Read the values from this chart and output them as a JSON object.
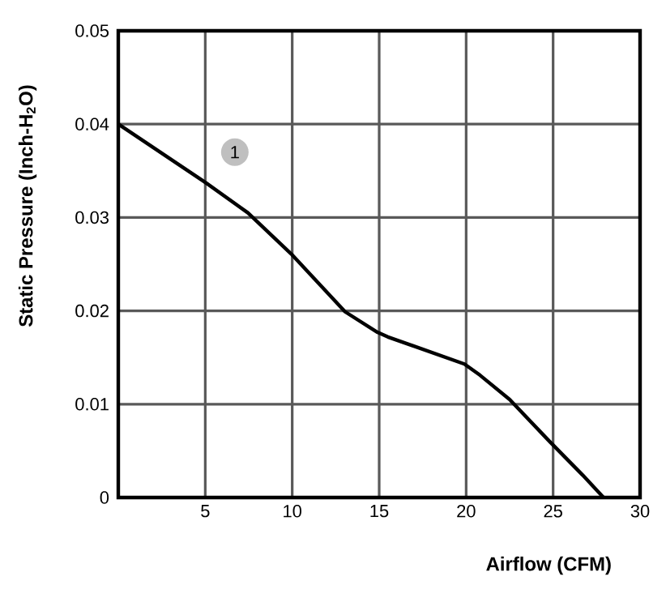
{
  "chart_data": {
    "type": "line",
    "xlabel": "Airflow (CFM)",
    "ylabel": "Static Pressure (Inch-H$_{2}$O)",
    "x": [
      0,
      4.97,
      7.45,
      9.94,
      13.04,
      14.9,
      15.5,
      19.9,
      20.8,
      22.5,
      24.8,
      26.7,
      27.9
    ],
    "values": [
      0.04,
      0.0338,
      0.0305,
      0.0261,
      0.0199,
      0.0177,
      0.0172,
      0.0143,
      0.0131,
      0.0105,
      0.006,
      0.0024,
      0
    ],
    "color": "#000000",
    "xlim": [
      0,
      30
    ],
    "xticks": [
      5,
      10,
      15,
      20,
      25,
      30
    ],
    "ylim": [
      0,
      0.05
    ],
    "yticks": [
      0,
      0.01,
      0.02,
      0.03,
      0.04,
      0.05
    ],
    "grid": true,
    "marker": "none",
    "line_style": "solid",
    "annotations": [
      {
        "text": "1",
        "x": 6.7,
        "y": 0.037
      }
    ]
  }
}
